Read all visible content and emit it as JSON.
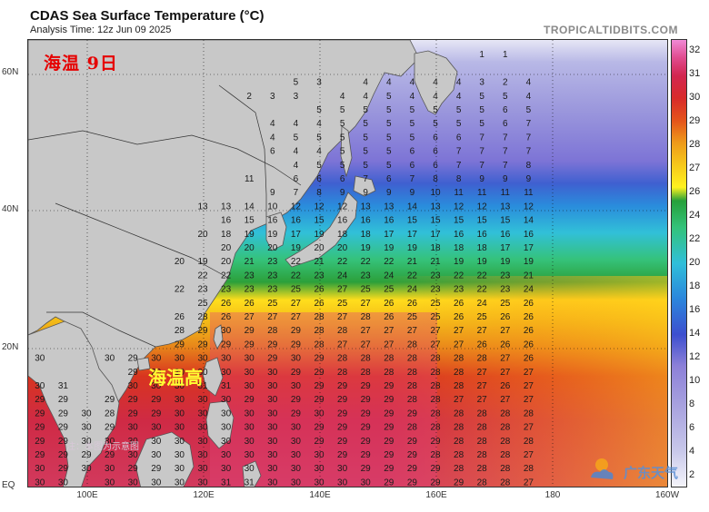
{
  "header": {
    "title": "CDAS Sea Surface Temperature (°C)",
    "subtitle": "Analysis Time: 12z Jun 09 2025",
    "brand": "TROPICALTIDBITS.COM"
  },
  "annotations": {
    "red": "海温  9日",
    "yellow": "海温高",
    "note": "注：本图为示意图",
    "logo_text": "广东天气"
  },
  "axes": {
    "lat_labels": [
      "60N",
      "40N",
      "20N",
      "EQ"
    ],
    "lon_labels": [
      "100E",
      "120E",
      "140E",
      "160E",
      "180",
      "160W"
    ]
  },
  "colorbar": {
    "ticks": [
      "2",
      "4",
      "6",
      "8",
      "10",
      "12",
      "14",
      "16",
      "18",
      "20",
      "22",
      "24",
      "26",
      "27",
      "28",
      "29",
      "30",
      "31",
      "32"
    ]
  },
  "colors": {
    "land": "#c8c8c8",
    "border": "#222222"
  },
  "sst_rows": [
    {
      "lat": 63,
      "values": [
        null,
        null,
        null,
        null,
        null,
        null,
        null,
        null,
        null,
        null,
        null,
        null,
        null,
        null,
        null,
        null,
        null,
        null,
        null,
        1,
        1,
        null
      ]
    },
    {
      "lat": 59,
      "values": [
        null,
        null,
        null,
        null,
        null,
        null,
        null,
        null,
        null,
        null,
        null,
        5,
        3,
        null,
        4,
        4,
        4,
        4,
        4,
        3,
        2,
        4
      ]
    },
    {
      "lat": 57,
      "values": [
        null,
        null,
        null,
        null,
        null,
        null,
        null,
        null,
        null,
        2,
        3,
        3,
        null,
        4,
        4,
        5,
        4,
        4,
        4,
        5,
        5,
        4
      ]
    },
    {
      "lat": 55,
      "values": [
        null,
        null,
        null,
        null,
        null,
        null,
        null,
        null,
        null,
        null,
        null,
        null,
        5,
        5,
        5,
        5,
        5,
        5,
        5,
        5,
        6,
        5
      ]
    },
    {
      "lat": 53,
      "values": [
        null,
        null,
        null,
        null,
        null,
        null,
        null,
        null,
        null,
        null,
        4,
        4,
        4,
        5,
        5,
        5,
        5,
        5,
        5,
        5,
        6,
        7
      ]
    },
    {
      "lat": 51,
      "values": [
        null,
        null,
        null,
        null,
        null,
        null,
        null,
        null,
        null,
        null,
        4,
        5,
        5,
        5,
        5,
        5,
        5,
        6,
        6,
        7,
        7,
        7
      ]
    },
    {
      "lat": 49,
      "values": [
        null,
        null,
        null,
        null,
        null,
        null,
        null,
        null,
        null,
        null,
        6,
        4,
        4,
        5,
        5,
        5,
        6,
        6,
        7,
        7,
        7,
        7
      ]
    },
    {
      "lat": 47,
      "values": [
        null,
        null,
        null,
        null,
        null,
        null,
        null,
        null,
        null,
        null,
        null,
        4,
        5,
        5,
        5,
        5,
        6,
        6,
        7,
        7,
        7,
        8
      ]
    },
    {
      "lat": 45,
      "values": [
        null,
        null,
        null,
        null,
        null,
        null,
        null,
        null,
        null,
        11,
        null,
        6,
        6,
        6,
        7,
        6,
        7,
        8,
        8,
        9,
        9,
        9
      ]
    },
    {
      "lat": 43,
      "values": [
        null,
        null,
        null,
        null,
        null,
        null,
        null,
        null,
        null,
        null,
        9,
        7,
        8,
        9,
        9,
        9,
        9,
        10,
        11,
        11,
        11,
        11
      ]
    },
    {
      "lat": 41,
      "values": [
        null,
        null,
        null,
        null,
        null,
        null,
        null,
        13,
        13,
        14,
        10,
        12,
        12,
        12,
        13,
        13,
        14,
        13,
        12,
        12,
        13,
        12
      ]
    },
    {
      "lat": 39,
      "values": [
        null,
        null,
        null,
        null,
        null,
        null,
        null,
        null,
        16,
        15,
        16,
        16,
        15,
        16,
        16,
        16,
        15,
        15,
        15,
        15,
        15,
        14
      ]
    },
    {
      "lat": 37,
      "values": [
        null,
        null,
        null,
        null,
        null,
        null,
        null,
        20,
        18,
        19,
        19,
        17,
        19,
        18,
        18,
        17,
        17,
        17,
        16,
        16,
        16,
        16
      ]
    },
    {
      "lat": 35,
      "values": [
        null,
        null,
        null,
        null,
        null,
        null,
        null,
        null,
        20,
        20,
        20,
        19,
        20,
        20,
        19,
        19,
        19,
        18,
        18,
        18,
        17,
        17
      ]
    },
    {
      "lat": 33,
      "values": [
        null,
        null,
        null,
        null,
        null,
        null,
        20,
        19,
        20,
        21,
        23,
        22,
        21,
        22,
        22,
        22,
        21,
        21,
        19,
        19,
        19,
        19
      ]
    },
    {
      "lat": 31,
      "values": [
        null,
        null,
        null,
        null,
        null,
        null,
        null,
        22,
        22,
        23,
        23,
        22,
        23,
        24,
        23,
        24,
        22,
        23,
        22,
        22,
        23,
        21
      ]
    },
    {
      "lat": 29,
      "values": [
        null,
        null,
        null,
        null,
        null,
        null,
        22,
        23,
        23,
        23,
        23,
        25,
        26,
        27,
        25,
        25,
        24,
        23,
        23,
        22,
        23,
        24
      ]
    },
    {
      "lat": 27,
      "values": [
        null,
        null,
        null,
        null,
        null,
        null,
        null,
        25,
        26,
        26,
        25,
        27,
        26,
        25,
        27,
        26,
        26,
        25,
        26,
        24,
        25,
        26
      ]
    },
    {
      "lat": 25,
      "values": [
        null,
        null,
        null,
        null,
        null,
        null,
        26,
        28,
        26,
        27,
        27,
        27,
        28,
        27,
        28,
        26,
        25,
        25,
        26,
        25,
        26,
        26
      ]
    },
    {
      "lat": 23,
      "values": [
        null,
        null,
        null,
        null,
        null,
        null,
        28,
        29,
        30,
        29,
        28,
        29,
        28,
        28,
        27,
        27,
        27,
        27,
        27,
        27,
        27,
        26
      ]
    },
    {
      "lat": 21,
      "values": [
        null,
        null,
        null,
        null,
        null,
        null,
        29,
        29,
        29,
        29,
        29,
        29,
        28,
        27,
        27,
        27,
        28,
        27,
        27,
        26,
        26,
        26
      ]
    },
    {
      "lat": 19,
      "values": [
        30,
        null,
        null,
        30,
        29,
        30,
        30,
        30,
        30,
        30,
        29,
        30,
        29,
        28,
        28,
        28,
        28,
        28,
        28,
        28,
        27,
        26
      ]
    },
    {
      "lat": 17,
      "values": [
        null,
        null,
        null,
        null,
        29,
        29,
        30,
        30,
        30,
        30,
        30,
        29,
        29,
        28,
        28,
        28,
        28,
        28,
        28,
        27,
        27,
        27
      ]
    },
    {
      "lat": 15,
      "values": [
        30,
        31,
        null,
        null,
        30,
        30,
        30,
        31,
        31,
        30,
        30,
        30,
        29,
        29,
        29,
        29,
        28,
        28,
        28,
        27,
        26,
        27
      ]
    },
    {
      "lat": 13,
      "values": [
        29,
        29,
        null,
        29,
        29,
        29,
        30,
        30,
        30,
        29,
        30,
        29,
        29,
        29,
        29,
        29,
        28,
        28,
        27,
        27,
        27,
        27
      ]
    },
    {
      "lat": 11,
      "values": [
        29,
        29,
        30,
        28,
        29,
        29,
        30,
        30,
        30,
        30,
        30,
        29,
        30,
        29,
        29,
        29,
        29,
        28,
        28,
        28,
        28,
        28
      ]
    },
    {
      "lat": 9,
      "values": [
        29,
        29,
        30,
        29,
        30,
        30,
        30,
        30,
        30,
        30,
        30,
        30,
        29,
        29,
        29,
        29,
        28,
        28,
        28,
        28,
        28,
        27
      ]
    },
    {
      "lat": 7,
      "values": [
        29,
        29,
        30,
        30,
        30,
        30,
        30,
        30,
        30,
        30,
        30,
        30,
        29,
        29,
        29,
        29,
        29,
        29,
        28,
        28,
        28,
        28
      ]
    },
    {
      "lat": 5,
      "values": [
        29,
        29,
        29,
        29,
        30,
        30,
        30,
        30,
        30,
        30,
        30,
        30,
        30,
        29,
        29,
        29,
        29,
        28,
        28,
        28,
        28,
        27
      ]
    },
    {
      "lat": 3,
      "values": [
        30,
        29,
        30,
        30,
        29,
        29,
        30,
        30,
        30,
        30,
        30,
        30,
        30,
        30,
        29,
        29,
        29,
        29,
        28,
        28,
        28,
        28
      ]
    },
    {
      "lat": 1,
      "values": [
        30,
        30,
        null,
        30,
        30,
        30,
        30,
        30,
        31,
        31,
        30,
        30,
        30,
        30,
        30,
        29,
        29,
        29,
        29,
        28,
        28,
        27
      ]
    }
  ],
  "sst_lons": [
    92,
    96,
    100,
    104,
    108,
    112,
    116,
    120,
    124,
    128,
    132,
    136,
    140,
    144,
    148,
    152,
    156,
    160,
    164,
    168,
    172,
    176
  ]
}
